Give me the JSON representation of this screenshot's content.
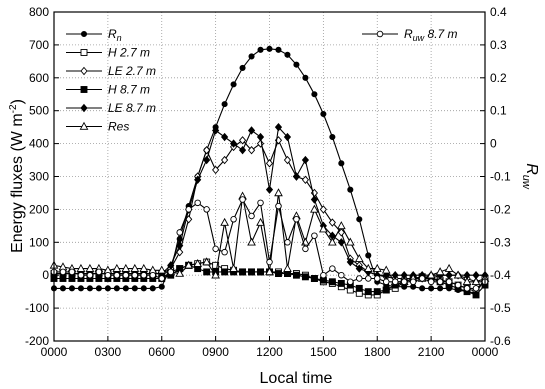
{
  "chart_data": {
    "type": "line",
    "xlabel": "Local time",
    "ylabel": "Energy fluxes (W m",
    "ylabel_sup": "-2",
    "ylabel_end": ")",
    "y2label": "R",
    "y2label_sub": "uw",
    "ylim": [
      -200,
      800
    ],
    "y2lim": [
      -0.6,
      0.4
    ],
    "xlim": [
      0,
      48
    ],
    "yticks": [
      -200,
      -100,
      0,
      100,
      200,
      300,
      400,
      500,
      600,
      700,
      800
    ],
    "y2ticks": [
      -0.6,
      -0.5,
      -0.4,
      -0.3,
      -0.2,
      -0.1,
      0,
      0.1,
      0.2,
      0.3,
      0.4
    ],
    "x_tick_labels": [
      "0000",
      "0300",
      "0600",
      "0900",
      "1200",
      "1500",
      "1800",
      "2100",
      "0000"
    ],
    "grid": "dotted",
    "x": [
      0,
      1,
      2,
      3,
      4,
      5,
      6,
      7,
      8,
      9,
      10,
      11,
      12,
      13,
      14,
      15,
      16,
      17,
      18,
      19,
      20,
      21,
      22,
      23,
      24,
      25,
      26,
      27,
      28,
      29,
      30,
      31,
      32,
      33,
      34,
      35,
      36,
      37,
      38,
      39,
      40,
      41,
      42,
      43,
      44,
      45,
      46,
      47,
      48
    ],
    "series": [
      {
        "name": "R",
        "name_sub": "n",
        "axis": "left",
        "marker": "filled-circle",
        "color": "#000000",
        "values": [
          -40,
          -40,
          -40,
          -40,
          -40,
          -40,
          -40,
          -40,
          -40,
          -40,
          -40,
          -40,
          -35,
          25,
          110,
          210,
          300,
          380,
          450,
          520,
          580,
          630,
          665,
          685,
          688,
          685,
          670,
          640,
          600,
          550,
          490,
          420,
          340,
          260,
          170,
          60,
          -20,
          -30,
          -35,
          -35,
          -35,
          -40,
          -40,
          -40,
          -40,
          -45,
          -50,
          -55,
          -10
        ]
      },
      {
        "name": "H  2.7 m",
        "axis": "left",
        "marker": "open-square",
        "color": "#000000",
        "values": [
          5,
          5,
          5,
          5,
          5,
          5,
          5,
          5,
          5,
          5,
          5,
          5,
          5,
          10,
          20,
          30,
          35,
          40,
          30,
          20,
          15,
          10,
          10,
          10,
          10,
          10,
          5,
          5,
          0,
          -10,
          -20,
          -25,
          -35,
          -45,
          -55,
          -60,
          -60,
          -45,
          -40,
          -20,
          -10,
          -5,
          -10,
          -15,
          -20,
          -30,
          -40,
          -50,
          -10
        ]
      },
      {
        "name": "LE 2.7 m",
        "axis": "left",
        "marker": "open-diamond",
        "color": "#000000",
        "values": [
          5,
          5,
          5,
          5,
          5,
          5,
          5,
          5,
          5,
          5,
          5,
          5,
          5,
          20,
          70,
          170,
          300,
          380,
          320,
          350,
          390,
          410,
          380,
          400,
          340,
          410,
          350,
          300,
          290,
          250,
          200,
          160,
          130,
          50,
          30,
          10,
          0,
          -5,
          -10,
          -10,
          -10,
          -10,
          -10,
          0,
          0,
          0,
          -10,
          -20,
          -20
        ]
      },
      {
        "name": "H  8.7 m",
        "axis": "left",
        "marker": "filled-square",
        "color": "#000000",
        "values": [
          -10,
          -10,
          -10,
          -10,
          -10,
          -10,
          -10,
          -10,
          -10,
          -10,
          -10,
          -10,
          -10,
          0,
          20,
          30,
          20,
          10,
          10,
          10,
          10,
          10,
          10,
          10,
          10,
          5,
          5,
          0,
          -5,
          -10,
          -15,
          -20,
          -25,
          -30,
          -40,
          -50,
          -50,
          -45,
          -30,
          -20,
          -10,
          -5,
          -10,
          -20,
          -30,
          -40,
          -50,
          -60,
          -30
        ]
      },
      {
        "name": "LE 8.7 m",
        "axis": "left",
        "marker": "filled-diamond",
        "color": "#000000",
        "values": [
          5,
          5,
          5,
          5,
          5,
          5,
          5,
          5,
          5,
          5,
          5,
          5,
          5,
          30,
          90,
          200,
          290,
          350,
          440,
          420,
          400,
          380,
          440,
          420,
          260,
          450,
          420,
          300,
          350,
          230,
          150,
          120,
          100,
          40,
          20,
          10,
          0,
          0,
          0,
          0,
          0,
          0,
          0,
          0,
          0,
          0,
          0,
          0,
          0
        ]
      },
      {
        "name": "Res",
        "axis": "left",
        "marker": "open-triangle",
        "color": "#000000",
        "values": [
          30,
          25,
          20,
          20,
          20,
          20,
          15,
          20,
          20,
          20,
          20,
          15,
          15,
          10,
          5,
          30,
          35,
          40,
          0,
          160,
          20,
          240,
          100,
          160,
          10,
          250,
          20,
          180,
          100,
          200,
          140,
          100,
          150,
          100,
          50,
          20,
          20,
          15,
          -20,
          -20,
          -10,
          -10,
          0,
          10,
          20,
          0,
          -20,
          -20,
          -10
        ]
      },
      {
        "name": "R",
        "name_sub": "uw",
        "name_tail": " 8.7 m",
        "axis": "right",
        "marker": "open-circle",
        "color": "#000000",
        "values": [
          -0.39,
          -0.39,
          -0.39,
          -0.4,
          -0.4,
          -0.39,
          -0.4,
          -0.4,
          -0.4,
          -0.4,
          -0.4,
          -0.4,
          -0.41,
          -0.39,
          -0.27,
          -0.2,
          -0.18,
          -0.2,
          -0.32,
          -0.33,
          -0.23,
          -0.17,
          -0.22,
          -0.18,
          -0.36,
          -0.19,
          -0.3,
          -0.23,
          -0.32,
          -0.28,
          -0.4,
          -0.38,
          -0.4,
          -0.42,
          -0.41,
          -0.41,
          -0.41,
          -0.42,
          -0.42,
          -0.42,
          -0.42,
          -0.41,
          -0.42,
          -0.42,
          -0.42,
          -0.43,
          -0.44,
          -0.44,
          -0.42
        ]
      }
    ],
    "legend_left": [
      "R",
      "H  2.7 m",
      "LE 2.7 m",
      "H  8.7 m",
      "LE 8.7 m",
      "Res"
    ]
  }
}
